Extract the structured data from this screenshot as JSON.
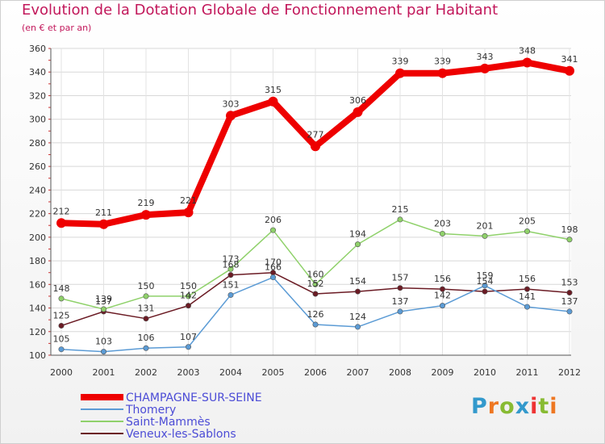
{
  "chart_data": {
    "type": "line",
    "title": "Evolution de la Dotation Globale de Fonctionnement par Habitant",
    "subtitle": "(en € et par an)",
    "xlabel": "",
    "ylabel": "",
    "x": [
      "2000",
      "2001",
      "2002",
      "2003",
      "2004",
      "2005",
      "2006",
      "2007",
      "2008",
      "2009",
      "2010",
      "2011",
      "2012"
    ],
    "ylim": [
      100,
      360
    ],
    "yticks": [
      100,
      120,
      140,
      160,
      180,
      200,
      220,
      240,
      260,
      280,
      300,
      320,
      340,
      360
    ],
    "grid": true,
    "legend_position": "bottom-left",
    "series": [
      {
        "name": "Veneux-les-Sablons",
        "color": "#6b1b24",
        "width": 1.5,
        "values": [
          125,
          137,
          131,
          142,
          168,
          170,
          152,
          154,
          157,
          156,
          154,
          156,
          153
        ]
      },
      {
        "name": "Saint-Mammès",
        "color": "#8fd16a",
        "width": 1.5,
        "values": [
          148,
          139,
          150,
          150,
          173,
          206,
          160,
          194,
          215,
          203,
          201,
          205,
          198
        ]
      },
      {
        "name": "Thomery",
        "color": "#5b9bd5",
        "width": 1.5,
        "values": [
          105,
          103,
          106,
          107,
          151,
          166,
          126,
          124,
          137,
          142,
          159,
          141,
          137
        ]
      },
      {
        "name": "CHAMPAGNE-SUR-SEINE",
        "color": "#ee0000",
        "width": 8,
        "values": [
          212,
          211,
          219,
          221,
          303,
          315,
          277,
          306,
          339,
          339,
          343,
          348,
          341
        ]
      }
    ],
    "legend_order": [
      "CHAMPAGNE-SUR-SEINE",
      "Thomery",
      "Saint-Mammès",
      "Veneux-les-Sablons"
    ]
  },
  "brand": {
    "letters": [
      "P",
      "r",
      "o",
      "x",
      "i",
      "t",
      "i"
    ],
    "colors": [
      "#3399cc",
      "#ee7722",
      "#88bb33",
      "#3399cc",
      "#ee3333",
      "#88bb33",
      "#ee7722"
    ]
  }
}
